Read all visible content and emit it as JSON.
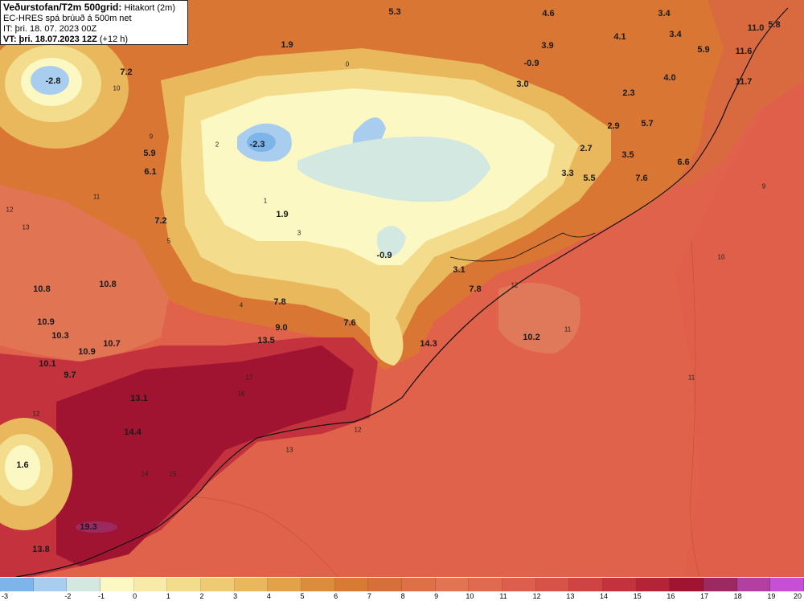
{
  "header": {
    "title": "Veðurstofan/T2m 500grid:",
    "title_suffix": "Hitakort (2m)",
    "model_line": "EC-HRES spá brúuð á 500m net",
    "init_line": "IT: þri. 18. 07. 2023 00Z",
    "valid_label": "VT: þri. 18.07.2023 12Z",
    "valid_suffix": "(+12 h)"
  },
  "temperature_labels": [
    {
      "id": "t-5-3",
      "text": "5.3"
    },
    {
      "id": "t-4-6",
      "text": "4.6"
    },
    {
      "id": "t-3-4a",
      "text": "3.4"
    },
    {
      "id": "t-11-0",
      "text": "11.0"
    },
    {
      "id": "t-5-8",
      "text": "5.8"
    },
    {
      "id": "t-3-4b",
      "text": "3.4"
    },
    {
      "id": "t-1-9a",
      "text": "1.9"
    },
    {
      "id": "t-4-1",
      "text": "4.1"
    },
    {
      "id": "t-3-9",
      "text": "3.9"
    },
    {
      "id": "t-5-9a",
      "text": "5.9"
    },
    {
      "id": "t-11-6",
      "text": "11.6"
    },
    {
      "id": "t-neg0-9a",
      "text": "-0.9"
    },
    {
      "id": "t-neg2-8",
      "text": "-2.8"
    },
    {
      "id": "t-7-2a",
      "text": "7.2"
    },
    {
      "id": "t-3-0",
      "text": "3.0"
    },
    {
      "id": "t-4-0",
      "text": "4.0"
    },
    {
      "id": "t-11-7",
      "text": "11.7"
    },
    {
      "id": "t-2-3a",
      "text": "2.3"
    },
    {
      "id": "t-2-9",
      "text": "2.9"
    },
    {
      "id": "t-5-7",
      "text": "5.7"
    },
    {
      "id": "t-neg2-3",
      "text": "-2.3"
    },
    {
      "id": "t-5-9b",
      "text": "5.9"
    },
    {
      "id": "t-2-7",
      "text": "2.7"
    },
    {
      "id": "t-3-5",
      "text": "3.5"
    },
    {
      "id": "t-6-6",
      "text": "6.6"
    },
    {
      "id": "t-6-1",
      "text": "6.1"
    },
    {
      "id": "t-3-3",
      "text": "3.3"
    },
    {
      "id": "t-5-5",
      "text": "5.5"
    },
    {
      "id": "t-7-6a",
      "text": "7.6"
    },
    {
      "id": "t-7-2b",
      "text": "7.2"
    },
    {
      "id": "t-1-9b",
      "text": "1.9"
    },
    {
      "id": "t-neg0-9b",
      "text": "-0.9"
    },
    {
      "id": "t-3-1",
      "text": "3.1"
    },
    {
      "id": "t-10-8a",
      "text": "10.8"
    },
    {
      "id": "t-10-8b",
      "text": "10.8"
    },
    {
      "id": "t-7-8a",
      "text": "7.8"
    },
    {
      "id": "t-7-8b",
      "text": "7.8"
    },
    {
      "id": "t-10-9a",
      "text": "10.9"
    },
    {
      "id": "t-9-0",
      "text": "9.0"
    },
    {
      "id": "t-7-6b",
      "text": "7.6"
    },
    {
      "id": "t-10-3",
      "text": "10.3"
    },
    {
      "id": "t-13-5",
      "text": "13.5"
    },
    {
      "id": "t-10-2",
      "text": "10.2"
    },
    {
      "id": "t-10-7",
      "text": "10.7"
    },
    {
      "id": "t-14-3",
      "text": "14.3"
    },
    {
      "id": "t-10-1",
      "text": "10.1"
    },
    {
      "id": "t-10-9b",
      "text": "10.9"
    },
    {
      "id": "t-9-7",
      "text": "9.7"
    },
    {
      "id": "t-13-1",
      "text": "13.1"
    },
    {
      "id": "t-14-4",
      "text": "14.4"
    },
    {
      "id": "t-1-6",
      "text": "1.6"
    },
    {
      "id": "t-19-3",
      "text": "19.3"
    },
    {
      "id": "t-13-8",
      "text": "13.8"
    }
  ],
  "contour_labels": [
    "12",
    "13",
    "12",
    "11",
    "10",
    "9",
    "5",
    "2",
    "1",
    "0",
    "3",
    "4",
    "11",
    "12",
    "13",
    "17",
    "16",
    "15",
    "14",
    "12",
    "11",
    "10",
    "9"
  ],
  "colorbar": {
    "ticks": [
      "-3",
      "-2",
      "-1",
      "0",
      "1",
      "2",
      "3",
      "4",
      "5",
      "6",
      "7",
      "8",
      "9",
      "10",
      "11",
      "12",
      "13",
      "14",
      "15",
      "16",
      "17",
      "18",
      "19",
      "20"
    ],
    "colors": [
      "#7db4ea",
      "#a8cdee",
      "#d3e8e0",
      "#fbf8c4",
      "#f8eaa8",
      "#f3dc8c",
      "#eecb73",
      "#e9b75c",
      "#e3a24a",
      "#dc8d3c",
      "#d67a34",
      "#d6703a",
      "#dd7046",
      "#e07453",
      "#e06a50",
      "#dd5e4c",
      "#d75248",
      "#cf4442",
      "#c4323d",
      "#b52337",
      "#a11431",
      "#9c2a61",
      "#b140a0",
      "#c64fd6"
    ],
    "cell_count": 24
  },
  "palette": {
    "sea": "#e0624a",
    "warm_sea": "#d65149",
    "hot": "#b5233a",
    "very_hot": "#a21531",
    "highland_pale": "#fbf8c4",
    "glacier_blue": "#a8cdee",
    "deep_blue": "#7db4ea",
    "coast_orange": "#d97634",
    "ridge_brown": "#c8742f",
    "light_tan": "#f3dc8c",
    "mid_tan": "#e9b75c",
    "coastline": "#111111"
  }
}
